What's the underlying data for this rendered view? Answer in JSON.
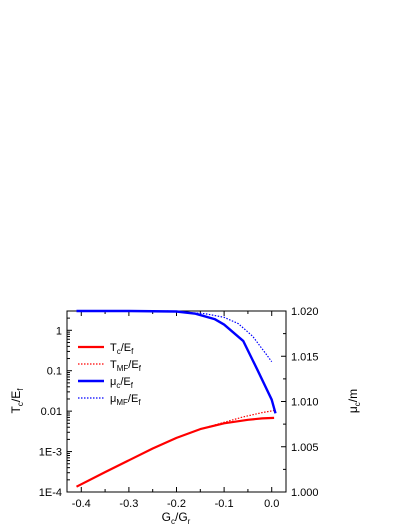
{
  "chart_data": {
    "type": "line",
    "xlabel": {
      "main": "G",
      "sub1": "c",
      "mid": "/G",
      "sub2": "r"
    },
    "ylabel_left": {
      "main": "T",
      "sub1": "c",
      "mid": "/E",
      "sub2": "f"
    },
    "ylabel_right": {
      "main": "μ",
      "sub1": "c",
      "mid": "/m",
      "sub2": ""
    },
    "x_range": [
      -0.43,
      0.03
    ],
    "x_ticks": [
      -0.4,
      -0.3,
      -0.2,
      -0.1,
      0.0
    ],
    "x_tick_labels": [
      "-0.4",
      "-0.3",
      "-0.2",
      "-0.1",
      "0.0"
    ],
    "y_left_scale": "log",
    "y_left_range": [
      0.0001,
      3
    ],
    "y_left_ticks": [
      0.0001,
      0.001,
      0.01,
      0.1,
      1
    ],
    "y_left_tick_labels": [
      "1E-4",
      "1E-3",
      "0.01",
      "0.1",
      "1"
    ],
    "y_right_scale": "linear",
    "y_right_range": [
      1.0,
      1.02
    ],
    "y_right_ticks": [
      1.0,
      1.005,
      1.01,
      1.015,
      1.02
    ],
    "y_right_tick_labels": [
      "1.000",
      "1.005",
      "1.010",
      "1.015",
      "1.020"
    ],
    "grid": false,
    "legend_position": "middle-left",
    "series": [
      {
        "label": {
          "main": "T",
          "sub1": "c",
          "mid": "/E",
          "sub2": "f"
        },
        "axis": "left",
        "color": "#ff0000",
        "style": "solid",
        "width": 2.2,
        "points": [
          [
            -0.41,
            0.000135
          ],
          [
            -0.35,
            0.00031
          ],
          [
            -0.3,
            0.00061
          ],
          [
            -0.25,
            0.00119
          ],
          [
            -0.2,
            0.00218
          ],
          [
            -0.15,
            0.0036
          ],
          [
            -0.1,
            0.005
          ],
          [
            -0.05,
            0.0061
          ],
          [
            -0.02,
            0.0066
          ],
          [
            0.005,
            0.0068
          ]
        ]
      },
      {
        "label": {
          "main": "T",
          "sub1": "MF",
          "mid": "/E",
          "sub2": "f"
        },
        "axis": "left",
        "color": "#ff0000",
        "style": "dotted",
        "width": 1.2,
        "points": [
          [
            -0.15,
            0.0036
          ],
          [
            -0.1,
            0.0053
          ],
          [
            -0.06,
            0.0072
          ],
          [
            -0.02,
            0.0092
          ],
          [
            0.005,
            0.0104
          ]
        ]
      },
      {
        "label": {
          "main": "μ",
          "sub1": "c",
          "mid": "/E",
          "sub2": "f"
        },
        "axis": "right",
        "color": "#0000ff",
        "style": "solid",
        "width": 2.4,
        "points": [
          [
            -0.41,
            1.02
          ],
          [
            -0.3,
            1.02
          ],
          [
            -0.2,
            1.01995
          ],
          [
            -0.16,
            1.0197
          ],
          [
            -0.12,
            1.0191
          ],
          [
            -0.1,
            1.0185
          ],
          [
            -0.06,
            1.0167
          ],
          [
            -0.03,
            1.0135
          ],
          [
            0.0,
            1.0102
          ],
          [
            0.008,
            1.0087
          ]
        ]
      },
      {
        "label": {
          "main": "μ",
          "sub1": "MF",
          "mid": "/E",
          "sub2": "f"
        },
        "axis": "right",
        "color": "#0000ff",
        "style": "dotted",
        "width": 1.2,
        "points": [
          [
            -0.22,
            1.02
          ],
          [
            -0.18,
            1.01985
          ],
          [
            -0.14,
            1.0197
          ],
          [
            -0.1,
            1.0193
          ],
          [
            -0.07,
            1.0186
          ],
          [
            -0.04,
            1.0172
          ],
          [
            -0.01,
            1.0151
          ],
          [
            0.0,
            1.0144
          ]
        ]
      }
    ]
  }
}
